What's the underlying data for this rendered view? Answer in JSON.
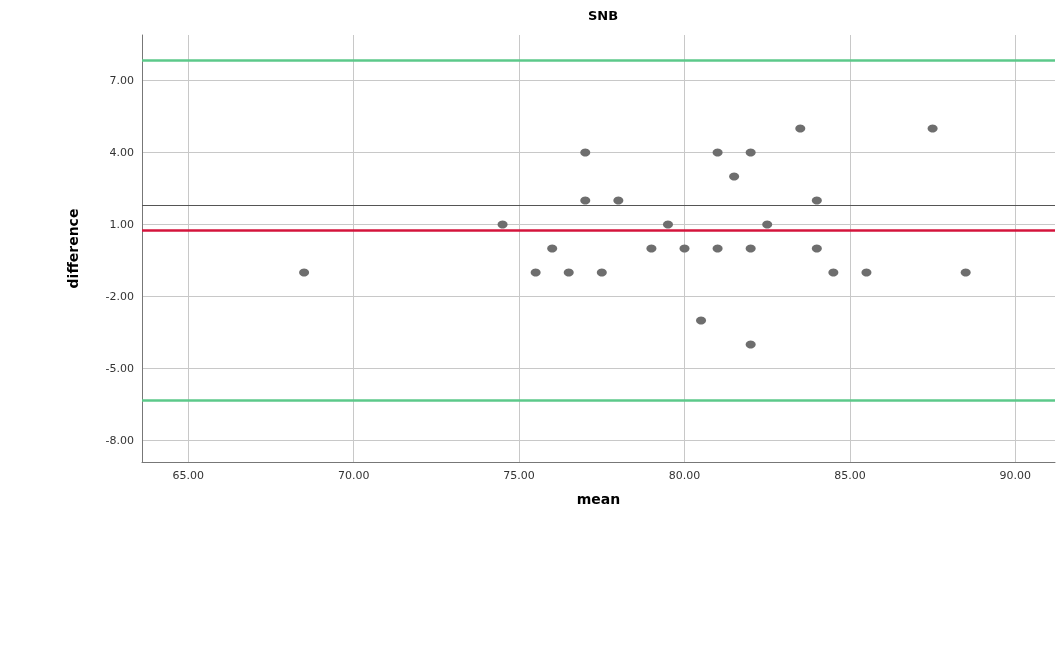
{
  "chart_data": {
    "type": "scatter",
    "title": "SNB",
    "xlabel": "mean",
    "ylabel": "difference",
    "x": [
      68.5,
      74.5,
      75.5,
      76,
      76.5,
      77,
      77,
      77.5,
      78,
      79,
      79.5,
      80,
      80.5,
      81,
      81,
      81.5,
      82,
      82,
      82,
      82.5,
      83.5,
      84,
      84,
      84.5,
      85.5,
      87.5,
      88.5
    ],
    "series": [
      {
        "color": "#6e6e6e",
        "values": [
          -1,
          1,
          -1,
          0,
          -1,
          4,
          2,
          -1,
          2,
          0,
          1,
          0,
          -3,
          4,
          0,
          3,
          4,
          0,
          -4,
          1,
          5,
          2,
          0,
          -1,
          -1,
          5,
          -1
        ]
      }
    ],
    "xlim": [
      63.6,
      91.2
    ],
    "ylim": [
      -8.9,
      8.9
    ],
    "xticks": [
      {
        "value": 65,
        "label": "65.00"
      },
      {
        "value": 70,
        "label": "70.00"
      },
      {
        "value": 75,
        "label": "75.00"
      },
      {
        "value": 80,
        "label": "80.00"
      },
      {
        "value": 85,
        "label": "85.00"
      },
      {
        "value": 90,
        "label": "90.00"
      }
    ],
    "yticks": [
      {
        "value": -8,
        "label": "-8.00"
      },
      {
        "value": -5,
        "label": "-5.00"
      },
      {
        "value": -2,
        "label": "-2.00"
      },
      {
        "value": 1,
        "label": "1.00"
      },
      {
        "value": 4,
        "label": "4.00"
      },
      {
        "value": 7,
        "label": "7.00"
      }
    ],
    "ref_lines": [
      {
        "axis": "y",
        "value": 7.83,
        "color": "#5cc98a"
      },
      {
        "axis": "y",
        "value": -6.33,
        "color": "#5cc98a"
      },
      {
        "axis": "y",
        "value": 0.75,
        "color": "#d4143c"
      },
      {
        "axis": "y",
        "value": 1.8,
        "color": "#555555"
      }
    ],
    "grid": true,
    "marker": "circle"
  }
}
